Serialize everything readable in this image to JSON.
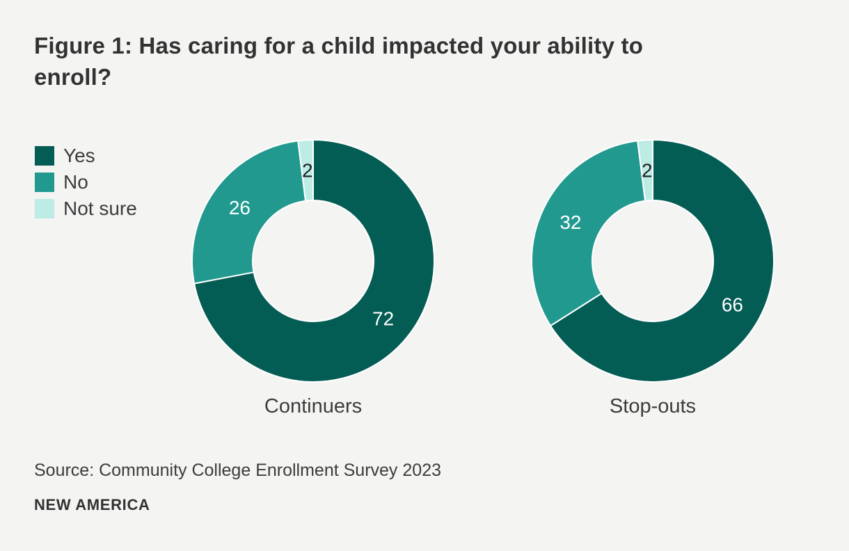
{
  "page": {
    "background_color": "#f4f4f3"
  },
  "chart_data": {
    "type": "donut",
    "title": "Figure 1: Has caring for a child impacted your ability to\nenroll?",
    "legend_position": "top-left",
    "segments": [
      "Yes",
      "No",
      "Not sure"
    ],
    "colors": [
      "#045d55",
      "#21998f",
      "#bdece5"
    ],
    "value_label_colors": [
      "#ffffff",
      "#ffffff",
      "#1d1d1d"
    ],
    "separator_color": "#ffffff",
    "charts": [
      {
        "category": "Continuers",
        "values": [
          72,
          26,
          2
        ]
      },
      {
        "category": "Stop-outs",
        "values": [
          66,
          32,
          2
        ]
      }
    ],
    "source": "Source: Community College Enrollment Survey 2023",
    "brand": "NEW AMERICA"
  }
}
